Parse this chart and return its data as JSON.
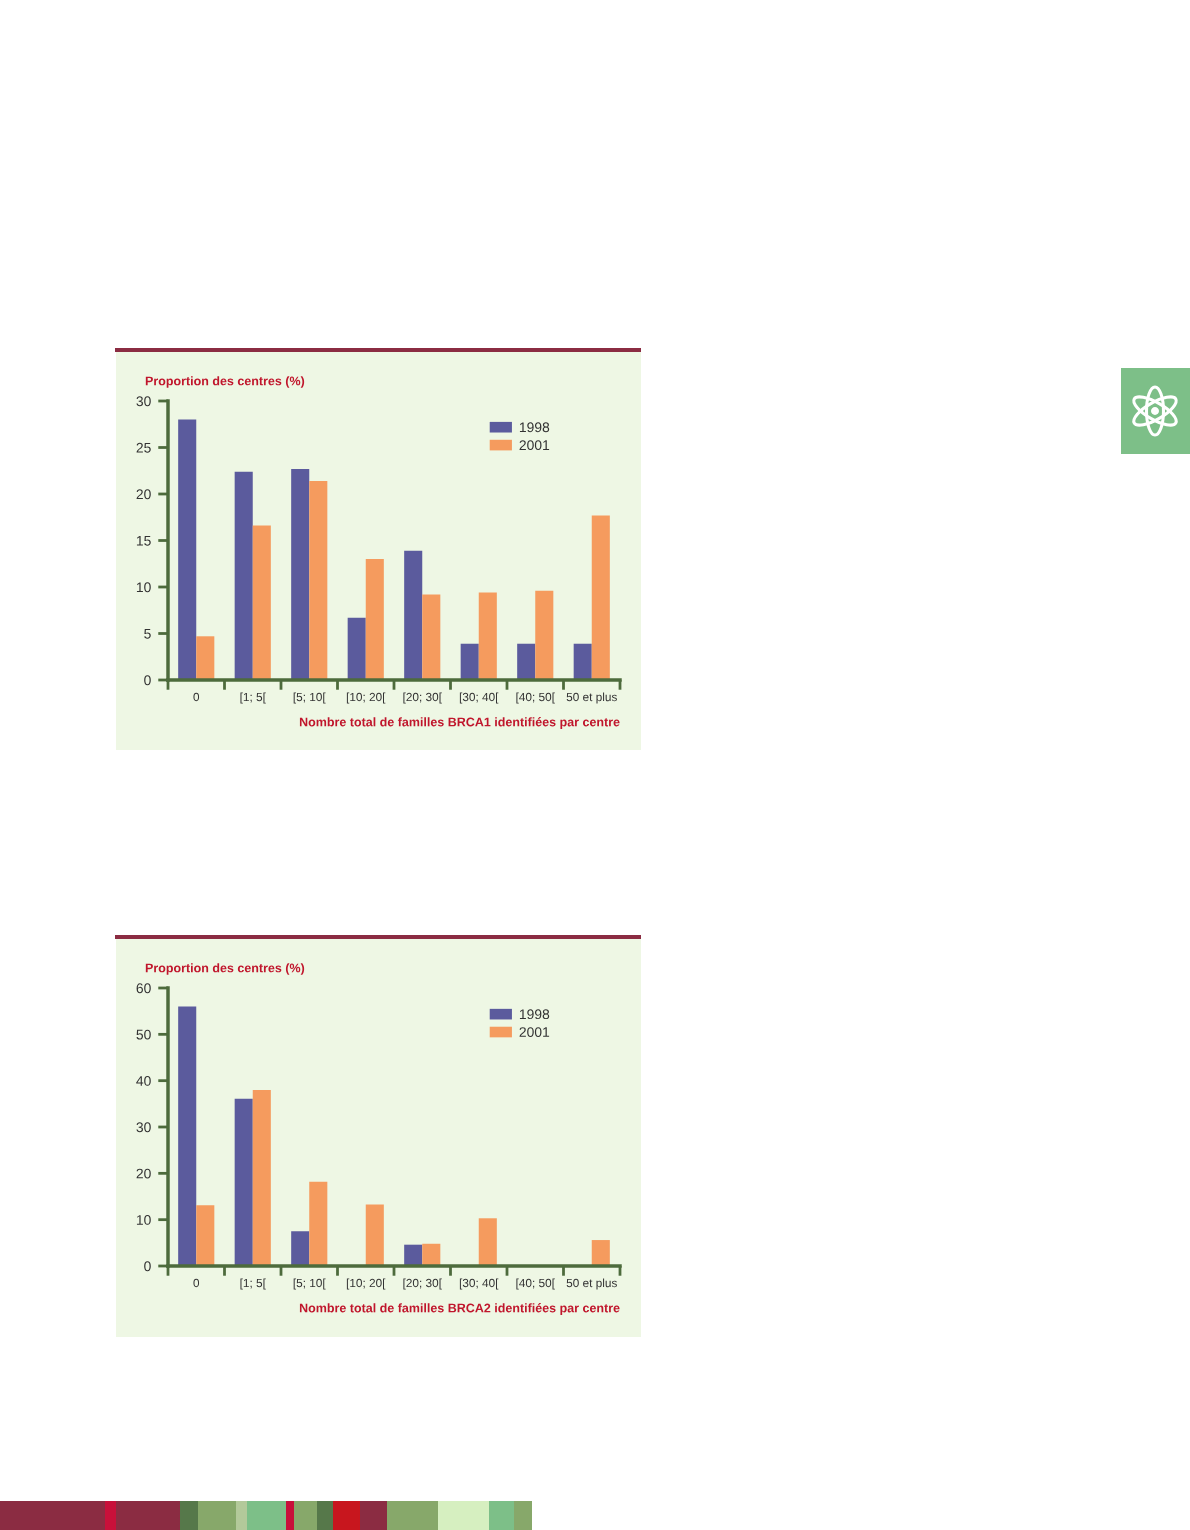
{
  "chart_data": [
    {
      "type": "bar",
      "ylabel": "Proportion des centres (%)",
      "xlabel": "Nombre total de familles BRCA1 identifiées par centre",
      "categories": [
        "0",
        "[1; 5[",
        "[5; 10[",
        "[10; 20[",
        "[20; 30[",
        "[30; 40[",
        "[40; 50[",
        "50 et plus"
      ],
      "series": [
        {
          "name": "1998",
          "color": "#5b5b9d",
          "values": [
            28.0,
            22.4,
            22.7,
            6.7,
            13.9,
            3.9,
            3.9,
            3.9
          ]
        },
        {
          "name": "2001",
          "color": "#f59b5e",
          "values": [
            4.7,
            16.6,
            21.4,
            13.0,
            9.2,
            9.4,
            9.6,
            17.7
          ]
        }
      ],
      "ylim": [
        0,
        30
      ],
      "yticks": [
        0,
        5,
        10,
        15,
        20,
        25,
        30
      ],
      "legend": "top right"
    },
    {
      "type": "bar",
      "ylabel": "Proportion des centres (%)",
      "xlabel": "Nombre total de familles BRCA2 identifiées par centre",
      "categories": [
        "0",
        "[1; 5[",
        "[5; 10[",
        "[10; 20[",
        "[20; 30[",
        "[30; 40[",
        "[40; 50[",
        "50 et plus"
      ],
      "series": [
        {
          "name": "1998",
          "color": "#5b5b9d",
          "values": [
            56.0,
            36.1,
            7.5,
            0,
            4.6,
            0,
            0,
            0
          ]
        },
        {
          "name": "2001",
          "color": "#f59b5e",
          "values": [
            13.1,
            38.0,
            18.2,
            13.3,
            4.8,
            10.3,
            0,
            5.6
          ]
        }
      ],
      "ylim": [
        0,
        60
      ],
      "yticks": [
        0,
        10,
        20,
        30,
        40,
        50,
        60
      ],
      "legend": "top right"
    }
  ]
}
